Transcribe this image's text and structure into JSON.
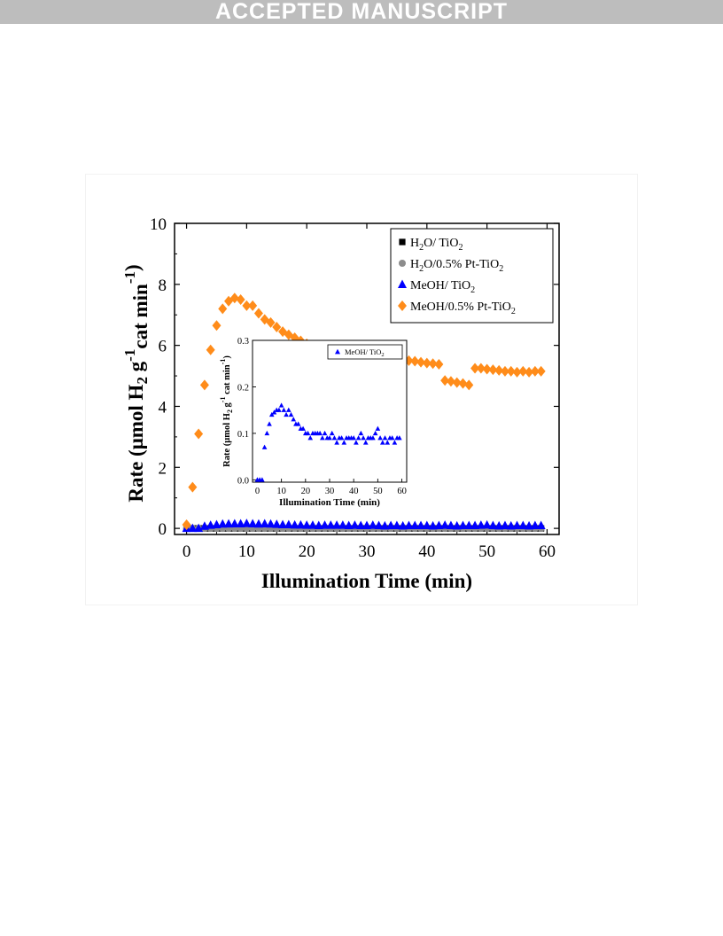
{
  "banner": {
    "text": "ACCEPTED MANUSCRIPT"
  },
  "chart_data": [
    {
      "type": "scatter",
      "xlabel": "Illumination Time (min)",
      "ylabel": "Rate (μmol H2 g-1cat min-1)",
      "xlim": [
        -2,
        62
      ],
      "ylim": [
        -0.2,
        10
      ],
      "xticks": [
        0,
        10,
        20,
        30,
        40,
        50,
        60
      ],
      "yticks": [
        0,
        2,
        4,
        6,
        8,
        10
      ],
      "grid": false,
      "legend_position": "top-right",
      "legend": [
        {
          "main": "H",
          "sub1": "2",
          "mid": "O/ TiO",
          "sub2": "2"
        },
        {
          "main": "H",
          "sub1": "2",
          "mid": "O/0.5% Pt-TiO",
          "sub2": "2"
        },
        {
          "main": "MeOH/ TiO",
          "sub1": "2",
          "mid": "",
          "sub2": ""
        },
        {
          "main": "MeOH/0.5% Pt-TiO",
          "sub1": "2",
          "mid": "",
          "sub2": ""
        }
      ],
      "series": [
        {
          "name": "H2O/ TiO2",
          "marker": "square",
          "color": "#000000",
          "x": [
            0,
            1,
            2,
            3,
            4,
            5,
            6,
            7,
            8,
            9,
            10,
            11,
            12,
            13,
            14,
            15,
            16,
            17,
            18,
            19,
            20,
            21,
            22,
            23,
            24,
            25,
            26,
            27,
            28,
            29,
            30,
            31,
            32,
            33,
            34,
            35,
            36,
            37,
            38,
            39,
            40,
            41,
            42,
            43,
            44,
            45,
            46,
            47,
            48,
            49,
            50,
            51,
            52,
            53,
            54,
            55,
            56,
            57,
            58,
            59
          ],
          "y": [
            0,
            0,
            0,
            0,
            0,
            0,
            0,
            0,
            0,
            0,
            0,
            0,
            0,
            0,
            0,
            0,
            0,
            0,
            0,
            0,
            0,
            0,
            0,
            0,
            0,
            0,
            0,
            0,
            0,
            0,
            0,
            0,
            0,
            0,
            0,
            0,
            0,
            0,
            0,
            0,
            0,
            0,
            0,
            0,
            0,
            0,
            0,
            0,
            0,
            0,
            0,
            0,
            0,
            0,
            0,
            0,
            0,
            0,
            0,
            0
          ]
        },
        {
          "name": "H2O/0.5% Pt-TiO2",
          "marker": "circle",
          "color": "#8c8c8c",
          "x": [
            0,
            1,
            2,
            3,
            4,
            5,
            6,
            7,
            8,
            9,
            10,
            11,
            12,
            13,
            14,
            15,
            16,
            17,
            18,
            19,
            20,
            21,
            22,
            23,
            24,
            25,
            26,
            27,
            28,
            29,
            30,
            31,
            32,
            33,
            34,
            35,
            36,
            37,
            38,
            39,
            40,
            41,
            42,
            43,
            44,
            45,
            46,
            47,
            48,
            49,
            50,
            51,
            52,
            53,
            54,
            55,
            56,
            57,
            58,
            59
          ],
          "y": [
            0,
            0,
            0,
            0,
            0,
            0,
            0,
            0,
            0,
            0,
            0,
            0,
            0,
            0,
            0,
            0,
            0,
            0,
            0,
            0,
            0,
            0,
            0,
            0,
            0,
            0,
            0,
            0,
            0,
            0,
            0,
            0,
            0,
            0,
            0,
            0,
            0,
            0,
            0,
            0,
            0,
            0,
            0,
            0,
            0,
            0,
            0,
            0,
            0,
            0,
            0,
            0,
            0,
            0,
            0,
            0,
            0,
            0,
            0,
            0
          ]
        },
        {
          "name": "MeOH/ TiO2",
          "marker": "triangle",
          "color": "#0000ff",
          "x": [
            0,
            1,
            2,
            3,
            4,
            5,
            6,
            7,
            8,
            9,
            10,
            11,
            12,
            13,
            14,
            15,
            16,
            17,
            18,
            19,
            20,
            21,
            22,
            23,
            24,
            25,
            26,
            27,
            28,
            29,
            30,
            31,
            32,
            33,
            34,
            35,
            36,
            37,
            38,
            39,
            40,
            41,
            42,
            43,
            44,
            45,
            46,
            47,
            48,
            49,
            50,
            51,
            52,
            53,
            54,
            55,
            56,
            57,
            58,
            59
          ],
          "y": [
            0,
            0,
            0,
            0.07,
            0.1,
            0.12,
            0.14,
            0.145,
            0.15,
            0.15,
            0.16,
            0.15,
            0.14,
            0.15,
            0.14,
            0.13,
            0.12,
            0.12,
            0.11,
            0.11,
            0.1,
            0.1,
            0.09,
            0.1,
            0.1,
            0.1,
            0.1,
            0.09,
            0.1,
            0.09,
            0.09,
            0.1,
            0.09,
            0.08,
            0.09,
            0.09,
            0.08,
            0.09,
            0.09,
            0.09,
            0.09,
            0.08,
            0.09,
            0.1,
            0.09,
            0.08,
            0.09,
            0.09,
            0.09,
            0.1,
            0.11,
            0.09,
            0.08,
            0.09,
            0.08,
            0.09,
            0.09,
            0.08,
            0.09,
            0.09
          ]
        },
        {
          "name": "MeOH/0.5% Pt-TiO2",
          "marker": "diamond",
          "color": "#ff8c1a",
          "x": [
            0,
            1,
            2,
            3,
            4,
            5,
            6,
            7,
            8,
            9,
            10,
            11,
            12,
            13,
            14,
            15,
            16,
            17,
            18,
            19,
            20,
            21,
            22,
            23,
            24,
            25,
            26,
            27,
            28,
            29,
            30,
            31,
            32,
            33,
            34,
            35,
            36,
            37,
            38,
            39,
            40,
            41,
            42,
            43,
            44,
            45,
            46,
            47,
            48,
            49,
            50,
            51,
            52,
            53,
            54,
            55,
            56,
            57,
            58,
            59
          ],
          "y": [
            0.12,
            1.35,
            3.1,
            4.7,
            5.85,
            6.65,
            7.2,
            7.45,
            7.55,
            7.5,
            7.3,
            7.3,
            7.05,
            6.85,
            6.75,
            6.6,
            6.45,
            6.35,
            6.25,
            6.15,
            6.05,
            5.95,
            5.9,
            5.85,
            5.8,
            5.8,
            5.75,
            5.7,
            5.65,
            5.62,
            5.62,
            5.6,
            5.6,
            5.58,
            5.57,
            5.55,
            5.52,
            5.5,
            5.48,
            5.45,
            5.42,
            5.4,
            5.38,
            4.85,
            4.82,
            4.78,
            4.75,
            4.7,
            5.25,
            5.25,
            5.22,
            5.2,
            5.18,
            5.15,
            5.15,
            5.12,
            5.15,
            5.12,
            5.15,
            5.15
          ]
        }
      ]
    },
    {
      "type": "scatter",
      "inset": true,
      "xlabel": "Illumination Time (min)",
      "ylabel": "Rate (μmol H2 g-1 cat min-1)",
      "xlim": [
        -2,
        62
      ],
      "ylim": [
        -0.005,
        0.3
      ],
      "xticks": [
        0,
        10,
        20,
        30,
        40,
        50,
        60
      ],
      "yticks": [
        0.0,
        0.1,
        0.2,
        0.3
      ],
      "ytick_labels": [
        "0.0",
        "0.1",
        "0.2",
        "0.3"
      ],
      "grid": false,
      "legend_position": "top-right",
      "legend": [
        {
          "main": "MeOH/ TiO",
          "sub1": "2"
        }
      ],
      "series_ref": "MeOH/ TiO2"
    }
  ]
}
